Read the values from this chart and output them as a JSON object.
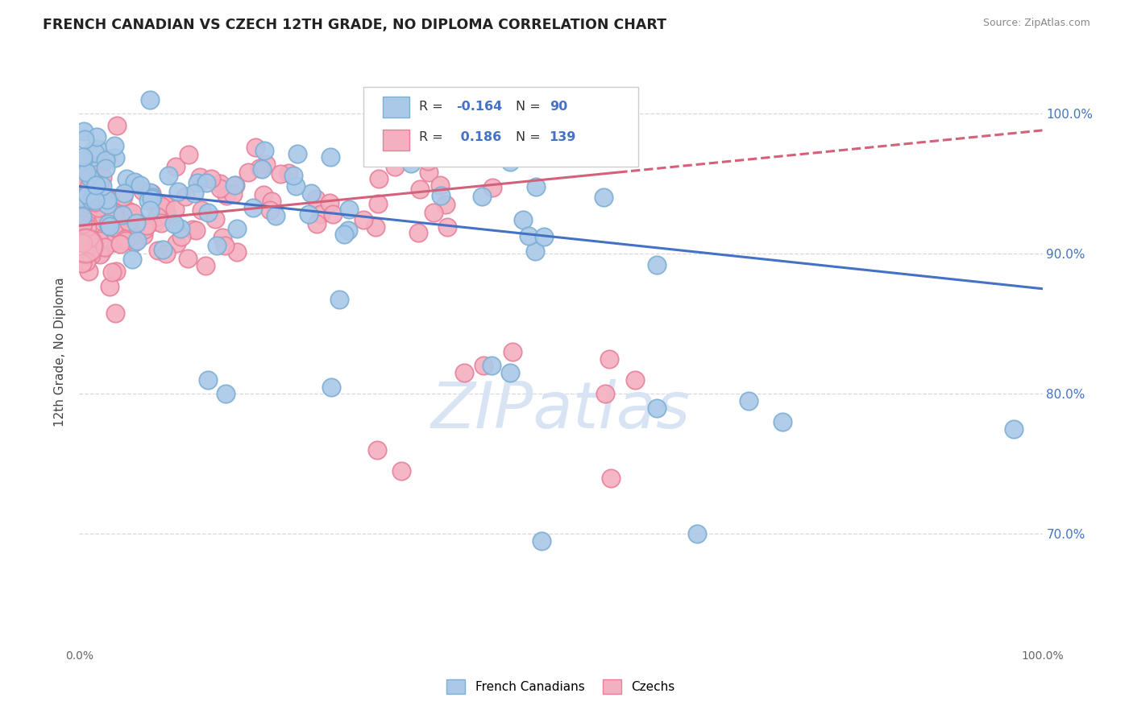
{
  "title": "FRENCH CANADIAN VS CZECH 12TH GRADE, NO DIPLOMA CORRELATION CHART",
  "source": "Source: ZipAtlas.com",
  "ylabel": "12th Grade, No Diploma",
  "legend_label1": "French Canadians",
  "legend_label2": "Czechs",
  "blue_edge": "#7bafd4",
  "blue_face": "#aac8e8",
  "pink_edge": "#e8809a",
  "pink_face": "#f4b0c0",
  "trend_blue": "#4472c4",
  "trend_pink": "#d4607a",
  "watermark_color": "#d8e4f4",
  "grid_color": "#d8d8d8",
  "ytick_color": "#4472c4",
  "title_color": "#222222",
  "ylabel_color": "#444444",
  "xtick_color": "#666666",
  "ytick_values": [
    0.7,
    0.8,
    0.9,
    1.0
  ],
  "R_blue": -0.164,
  "N_blue": 90,
  "R_pink": 0.186,
  "N_pink": 139,
  "blue_seed": 42,
  "pink_seed": 77,
  "xmin": 0.0,
  "xmax": 1.0,
  "ymin": 0.62,
  "ymax": 1.04
}
